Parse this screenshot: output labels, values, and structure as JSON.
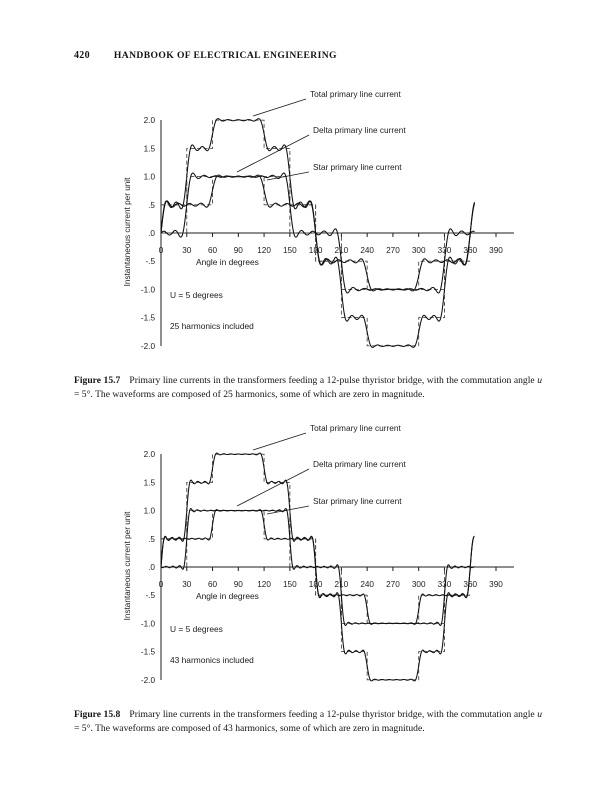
{
  "page": {
    "number": "420",
    "title": "HANDBOOK OF ELECTRICAL ENGINEERING"
  },
  "figures": [
    {
      "id": "figure-15-7",
      "caption": {
        "label": "Figure 15.7",
        "pre": "Primary line currents in the transformers feeding a 12-pulse thyristor bridge, with the commutation angle ",
        "u": "u",
        "post": " = 5°. The waveforms are composed of 25 harmonics, some of which are zero in magnitude."
      }
    },
    {
      "id": "figure-15-8",
      "caption": {
        "label": "Figure 15.8",
        "pre": "Primary line currents in the transformers feeding a 12-pulse thyristor bridge, with the commutation angle ",
        "u": "u",
        "post": " = 5°. The waveforms are composed of 43 harmonics, some of which are zero in magnitude."
      }
    }
  ],
  "chart_data": [
    {
      "type": "line",
      "title": "",
      "xlabel": "Angle in degrees",
      "ylabel": "Instantaneous current per unit",
      "xlim": [
        0,
        390
      ],
      "ylim": [
        -2.2,
        2.2
      ],
      "grid": false,
      "x_ticks": [
        0,
        30,
        60,
        90,
        120,
        150,
        180,
        210,
        240,
        270,
        300,
        330,
        360,
        390
      ],
      "y_ticks": [
        {
          "v": 2.0,
          "label": "2.0"
        },
        {
          "v": 1.5,
          "label": "1.5"
        },
        {
          "v": 1.0,
          "label": "1.0"
        },
        {
          "v": 0.5,
          "label": ".5"
        },
        {
          "v": 0.0,
          "label": ".0"
        },
        {
          "v": -0.5,
          "label": "-.5"
        },
        {
          "v": -1.0,
          "label": "-1.0"
        },
        {
          "v": -1.5,
          "label": "-1.5"
        },
        {
          "v": -2.0,
          "label": "-2.0"
        }
      ],
      "annotations": [
        "U  =  5  degrees",
        "25  harmonics included"
      ],
      "harmonics": 25,
      "commutation_deg": 5,
      "series": [
        {
          "name": "Total primary line current",
          "steps": [
            [
              0,
              0.5
            ],
            [
              30,
              1.5
            ],
            [
              60,
              2.0
            ],
            [
              120,
              1.5
            ],
            [
              150,
              0.5
            ],
            [
              180,
              -0.5
            ],
            [
              210,
              -1.5
            ],
            [
              240,
              -2.0
            ],
            [
              300,
              -1.5
            ],
            [
              330,
              -0.5
            ]
          ]
        },
        {
          "name": "Delta primary line current",
          "steps": [
            [
              0,
              0.5
            ],
            [
              60,
              1.0
            ],
            [
              120,
              0.5
            ],
            [
              180,
              -0.5
            ],
            [
              240,
              -1.0
            ],
            [
              300,
              -0.5
            ]
          ]
        },
        {
          "name": "Star primary line current",
          "steps": [
            [
              0,
              0.0
            ],
            [
              30,
              1.0
            ],
            [
              150,
              0.0
            ],
            [
              210,
              -1.0
            ],
            [
              330,
              0.0
            ]
          ]
        }
      ]
    },
    {
      "type": "line",
      "title": "",
      "xlabel": "Angle in degrees",
      "ylabel": "Instantaneous current per unit",
      "xlim": [
        0,
        390
      ],
      "ylim": [
        -2.2,
        2.2
      ],
      "grid": false,
      "x_ticks": [
        0,
        30,
        60,
        90,
        120,
        150,
        180,
        210,
        240,
        270,
        300,
        330,
        360,
        390
      ],
      "y_ticks": [
        {
          "v": 2.0,
          "label": "2.0"
        },
        {
          "v": 1.5,
          "label": "1.5"
        },
        {
          "v": 1.0,
          "label": "1.0"
        },
        {
          "v": 0.5,
          "label": ".5"
        },
        {
          "v": 0.0,
          "label": ".0"
        },
        {
          "v": -0.5,
          "label": "-.5"
        },
        {
          "v": -1.0,
          "label": "-1.0"
        },
        {
          "v": -1.5,
          "label": "-1.5"
        },
        {
          "v": -2.0,
          "label": "-2.0"
        }
      ],
      "annotations": [
        "U  =  5  degrees",
        "43  harmonics included"
      ],
      "harmonics": 43,
      "commutation_deg": 5,
      "series": [
        {
          "name": "Total primary line current",
          "steps": [
            [
              0,
              0.5
            ],
            [
              30,
              1.5
            ],
            [
              60,
              2.0
            ],
            [
              120,
              1.5
            ],
            [
              150,
              0.5
            ],
            [
              180,
              -0.5
            ],
            [
              210,
              -1.5
            ],
            [
              240,
              -2.0
            ],
            [
              300,
              -1.5
            ],
            [
              330,
              -0.5
            ]
          ]
        },
        {
          "name": "Delta primary line current",
          "steps": [
            [
              0,
              0.5
            ],
            [
              60,
              1.0
            ],
            [
              120,
              0.5
            ],
            [
              180,
              -0.5
            ],
            [
              240,
              -1.0
            ],
            [
              300,
              -0.5
            ]
          ]
        },
        {
          "name": "Star primary line current",
          "steps": [
            [
              0,
              0.0
            ],
            [
              30,
              1.0
            ],
            [
              150,
              0.0
            ],
            [
              210,
              -1.0
            ],
            [
              330,
              0.0
            ]
          ]
        }
      ]
    }
  ]
}
